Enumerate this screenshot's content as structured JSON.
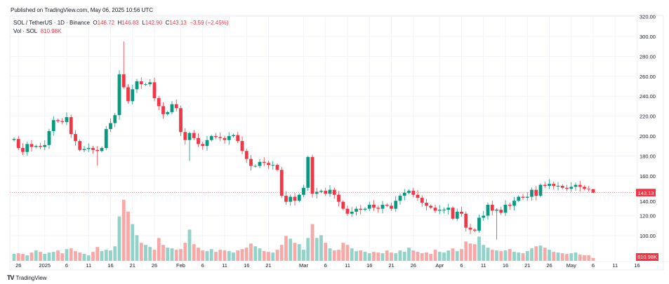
{
  "header": {
    "published": "Published on TradingView.com, May 06, 2025 10:56 UTC",
    "symbol": "SOL / TetherUS · 1D · Binance",
    "o_label": "O",
    "o": "146.72",
    "h_label": "H",
    "h": "146.83",
    "l_label": "L",
    "l": "142.90",
    "c_label": "C",
    "c": "143.13",
    "change": "−3.59 (−2.45%)",
    "vol_label": "Vol · SOL",
    "vol": "810.98K"
  },
  "footer": {
    "logo_text": "TradingView"
  },
  "colors": {
    "up": "#089981",
    "down": "#f23645",
    "vol_up": "#92d2c8",
    "vol_down": "#f7a9a7",
    "grid": "#f0f3fa"
  },
  "chart_data": {
    "type": "candlestick",
    "title": "SOL / TetherUS · 1D · Binance",
    "start_date": "2024-12-25",
    "end_date": "2025-05-06",
    "y_axis": {
      "range": [
        80,
        320
      ],
      "ticks": [
        "320.00",
        "300.00",
        "280.00",
        "260.00",
        "240.00",
        "220.00",
        "200.00",
        "180.00",
        "160.00",
        "140.00",
        "120.00",
        "100.00"
      ]
    },
    "x_axis": {
      "ticks": [
        {
          "label": "26",
          "day": 1
        },
        {
          "label": "2025",
          "day": 7
        },
        {
          "label": "6",
          "day": 12
        },
        {
          "label": "11",
          "day": 17
        },
        {
          "label": "16",
          "day": 22
        },
        {
          "label": "21",
          "day": 27
        },
        {
          "label": "26",
          "day": 32
        },
        {
          "label": "Feb",
          "day": 38
        },
        {
          "label": "6",
          "day": 43
        },
        {
          "label": "11",
          "day": 48
        },
        {
          "label": "16",
          "day": 53
        },
        {
          "label": "21",
          "day": 58
        },
        {
          "label": "Mar",
          "day": 66
        },
        {
          "label": "6",
          "day": 71
        },
        {
          "label": "11",
          "day": 76
        },
        {
          "label": "16",
          "day": 81
        },
        {
          "label": "21",
          "day": 86
        },
        {
          "label": "26",
          "day": 91
        },
        {
          "label": "Apr",
          "day": 97
        },
        {
          "label": "6",
          "day": 102
        },
        {
          "label": "11",
          "day": 107
        },
        {
          "label": "16",
          "day": 112
        },
        {
          "label": "21",
          "day": 117
        },
        {
          "label": "26",
          "day": 122
        },
        {
          "label": "May",
          "day": 127
        },
        {
          "label": "6",
          "day": 132
        },
        {
          "label": "11",
          "day": 137
        },
        {
          "label": "16",
          "day": 142
        }
      ]
    },
    "first_open": 196,
    "closes": [
      197,
      188,
      184,
      192,
      189,
      190,
      189,
      191,
      205,
      216,
      215,
      214,
      219,
      202,
      195,
      186,
      187,
      188,
      186,
      185,
      188,
      207,
      213,
      221,
      262,
      249,
      235,
      247,
      255,
      252,
      252,
      254,
      238,
      230,
      222,
      224,
      232,
      228,
      204,
      196,
      203,
      198,
      192,
      190,
      196,
      200,
      199,
      198,
      196,
      200,
      201,
      195,
      185,
      177,
      170,
      170,
      174,
      173,
      171,
      171,
      166,
      140,
      134,
      139,
      135,
      141,
      148,
      179,
      142,
      144,
      145,
      142,
      146,
      141,
      134,
      127,
      122,
      124,
      127,
      126,
      127,
      131,
      128,
      127,
      131,
      130,
      127,
      135,
      140,
      143,
      145,
      141,
      138,
      133,
      130,
      128,
      125,
      126,
      126,
      128,
      117,
      124,
      122,
      108,
      106,
      105,
      118,
      120,
      131,
      125,
      126,
      123,
      131,
      130,
      135,
      139,
      138,
      139,
      146,
      140,
      151,
      150,
      152,
      150,
      150,
      148,
      147,
      149,
      151,
      149,
      147,
      146.72,
      143.13
    ],
    "high_low_overrides": [
      {
        "day": 19,
        "low": 170
      },
      {
        "day": 25,
        "high": 295
      },
      {
        "day": 24,
        "high": 266
      },
      {
        "day": 40,
        "low": 175
      },
      {
        "day": 67,
        "high": 180
      },
      {
        "day": 110,
        "low": 96
      },
      {
        "day": 132,
        "high": 146.83,
        "low": 142.9
      }
    ],
    "volume_millions": [
      2.0,
      2.2,
      2.0,
      1.6,
      2.4,
      3.0,
      2.6,
      2.0,
      2.4,
      2.6,
      3.0,
      2.2,
      3.4,
      3.6,
      2.8,
      2.4,
      2.0,
      1.6,
      2.6,
      4.0,
      2.8,
      3.2,
      3.0,
      4.2,
      12.8,
      17.6,
      14.2,
      10.6,
      7.4,
      5.2,
      4.6,
      4.0,
      3.2,
      6.6,
      4.6,
      3.8,
      3.6,
      3.2,
      3.4,
      5.2,
      9.0,
      4.8,
      3.8,
      3.0,
      2.8,
      3.4,
      2.6,
      3.2,
      3.0,
      2.8,
      2.4,
      3.0,
      3.4,
      3.8,
      5.0,
      4.2,
      3.6,
      2.8,
      2.6,
      2.4,
      3.2,
      4.6,
      7.2,
      6.4,
      5.2,
      4.8,
      3.2,
      6.6,
      10.6,
      6.6,
      7.4,
      5.2,
      3.6,
      3.0,
      3.2,
      5.2,
      4.6,
      3.6,
      2.8,
      3.0,
      2.6,
      2.2,
      2.6,
      2.4,
      2.2,
      3.0,
      2.4,
      2.2,
      3.0,
      2.6,
      3.8,
      3.0,
      2.6,
      2.2,
      2.4,
      2.0,
      3.2,
      2.6,
      2.4,
      3.0,
      3.6,
      2.8,
      3.4,
      5.6,
      5.0,
      4.8,
      7.0,
      4.6,
      3.8,
      3.2,
      3.0,
      2.8,
      3.0,
      3.4,
      2.6,
      2.4,
      2.2,
      2.8,
      3.6,
      4.2,
      4.4,
      3.8,
      3.2,
      2.6,
      2.4,
      2.2,
      2.0,
      2.2,
      2.4,
      1.8,
      1.6,
      1.6,
      0.81
    ],
    "last_price": {
      "value": 143.13,
      "label": "143.13"
    },
    "last_volume": {
      "label": "810.98K"
    }
  }
}
